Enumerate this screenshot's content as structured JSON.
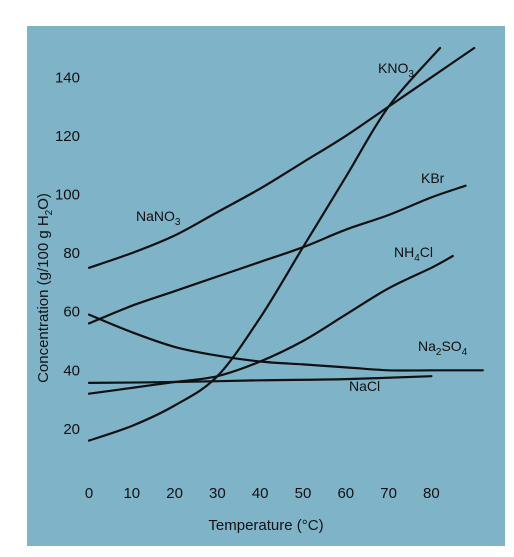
{
  "chart_data": {
    "type": "line",
    "title": "",
    "xlabel": "Temperature (°C)",
    "ylabel": {
      "parts": [
        "Concentration (g/100 g H",
        "2",
        "O)"
      ]
    },
    "xlim": [
      0,
      92
    ],
    "ylim": [
      0,
      150
    ],
    "xticks": [
      0,
      10,
      20,
      30,
      40,
      50,
      60,
      70,
      80
    ],
    "yticks": [
      20,
      40,
      60,
      80,
      100,
      120,
      140
    ],
    "grid": false,
    "series": [
      {
        "id": "kno3",
        "label_parts": [
          "KNO",
          "3",
          ""
        ],
        "x": [
          0,
          10,
          20,
          30,
          40,
          50,
          60,
          70,
          82
        ],
        "y": [
          16,
          21,
          28,
          38,
          58,
          82,
          106,
          130,
          150
        ]
      },
      {
        "id": "nano3",
        "label_parts": [
          "NaNO",
          "3",
          ""
        ],
        "x": [
          0,
          10,
          20,
          30,
          40,
          50,
          60,
          70,
          80,
          90
        ],
        "y": [
          75,
          80,
          86,
          94,
          102,
          111,
          120,
          130,
          140,
          150
        ]
      },
      {
        "id": "kbr",
        "label_parts": [
          "KBr",
          "",
          ""
        ],
        "x": [
          0,
          10,
          20,
          30,
          40,
          50,
          60,
          70,
          80,
          88
        ],
        "y": [
          56,
          62,
          67,
          72,
          77,
          82,
          88,
          93,
          99,
          103
        ]
      },
      {
        "id": "nh4cl",
        "label_parts": [
          "NH",
          "4",
          "Cl"
        ],
        "x": [
          0,
          10,
          20,
          30,
          40,
          50,
          60,
          70,
          80,
          85
        ],
        "y": [
          32,
          34,
          36,
          38,
          43,
          50,
          59,
          68,
          75,
          79
        ]
      },
      {
        "id": "na2so4",
        "label_parts": [
          "Na",
          "2",
          "SO",
          "4",
          ""
        ],
        "x": [
          0,
          10,
          20,
          30,
          40,
          50,
          60,
          70,
          80,
          92
        ],
        "y": [
          59,
          53,
          48,
          45,
          43,
          42,
          41,
          40,
          40,
          40
        ]
      },
      {
        "id": "nacl",
        "label_parts": [
          "NaCl",
          "",
          ""
        ],
        "x": [
          0,
          20,
          40,
          60,
          80
        ],
        "y": [
          35.7,
          36,
          36.6,
          37,
          38
        ]
      }
    ]
  }
}
